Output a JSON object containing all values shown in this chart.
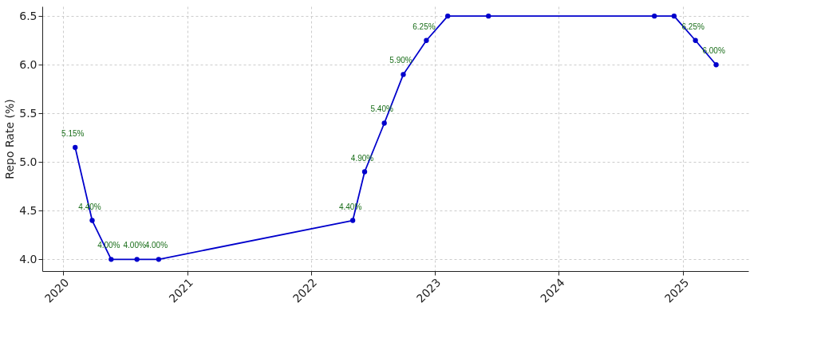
{
  "chart_data": {
    "type": "line",
    "ylabel": "Repo Rate (%)",
    "x": [
      "2020-02-06",
      "2020-03-27",
      "2020-05-22",
      "2020-08-06",
      "2020-10-09",
      "2022-05-04",
      "2022-06-08",
      "2022-08-05",
      "2022-09-30",
      "2022-12-07",
      "2023-02-08",
      "2023-06-08",
      "2024-10-09",
      "2024-12-06",
      "2025-02-07",
      "2025-04-09"
    ],
    "series": [
      {
        "color": "#0000cc",
        "values": [
          5.15,
          4.4,
          4.0,
          4.0,
          4.0,
          4.4,
          4.9,
          5.4,
          5.9,
          6.25,
          6.5,
          6.5,
          6.5,
          6.5,
          6.25,
          6.0
        ],
        "value_labels": [
          "5.15%",
          "4.40%",
          "4.00%",
          "4.00%",
          "4.00%",
          "4.40%",
          "4.90%",
          "5.40%",
          "5.90%",
          "6.25%",
          null,
          null,
          null,
          null,
          "6.25%",
          "6.00%"
        ]
      }
    ],
    "xlim": [
      "2019-11-01",
      "2025-07-13"
    ],
    "xticks": [
      "2020",
      "2021",
      "2022",
      "2023",
      "2024",
      "2025"
    ],
    "ylim": [
      3.88,
      6.6
    ],
    "yticks": [
      {
        "value": 4,
        "label": "4.0"
      },
      4.5,
      {
        "value": 5,
        "label": "5.0"
      },
      5.5,
      {
        "value": 6,
        "label": "6.0"
      },
      6.5
    ],
    "grid": true,
    "marker": "circle",
    "line_style": "solid"
  }
}
